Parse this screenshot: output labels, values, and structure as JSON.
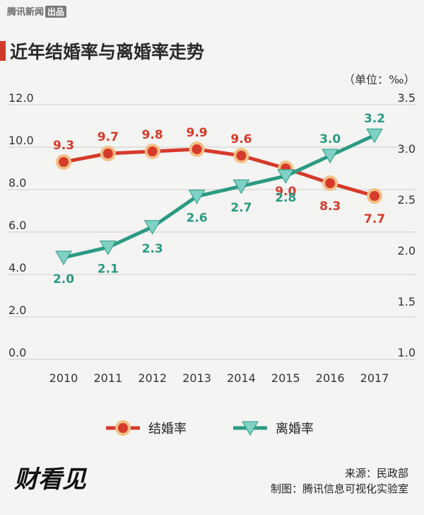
{
  "brand": {
    "name": "腾讯新闻",
    "badge": "出品"
  },
  "title": "近年结婚率与离婚率走势",
  "unit": "（单位：‰）",
  "footer": {
    "source": "来源：民政部",
    "maker": "制图：腾讯信息可视化实验室"
  },
  "logo": "财看见",
  "colors": {
    "marriage": "#d63a2a",
    "divorce": "#2b9a84",
    "marker_ring": "#f2c086",
    "grid": "#cccccc"
  },
  "chart_data": {
    "type": "line",
    "title": "近年结婚率与离婚率走势",
    "categories": [
      "2010",
      "2011",
      "2012",
      "2013",
      "2014",
      "2015",
      "2016",
      "2017"
    ],
    "y_left": {
      "ylim": [
        0,
        12
      ],
      "ticks": [
        "0.0",
        "2.0",
        "4.0",
        "6.0",
        "8.0",
        "10.0",
        "12.0"
      ]
    },
    "y_right": {
      "ylim": [
        1.0,
        3.5
      ],
      "ticks": [
        "1.0",
        "1.5",
        "2.0",
        "2.5",
        "3.0",
        "3.5"
      ]
    },
    "series": [
      {
        "name": "结婚率",
        "axis": "left",
        "values": [
          9.3,
          9.7,
          9.8,
          9.9,
          9.6,
          9.0,
          8.3,
          7.7
        ],
        "labels": [
          "9.3",
          "9.7",
          "9.8",
          "9.9",
          "9.6",
          "9.0",
          "8.3",
          "7.7"
        ]
      },
      {
        "name": "离婚率",
        "axis": "right",
        "values": [
          2.0,
          2.1,
          2.3,
          2.6,
          2.7,
          2.8,
          3.0,
          3.2
        ],
        "labels": [
          "2.0",
          "2.1",
          "2.3",
          "2.6",
          "2.7",
          "2.8",
          "3.0",
          "3.2"
        ]
      }
    ],
    "legend": [
      "结婚率",
      "离婚率"
    ],
    "legend_position": "bottom"
  }
}
